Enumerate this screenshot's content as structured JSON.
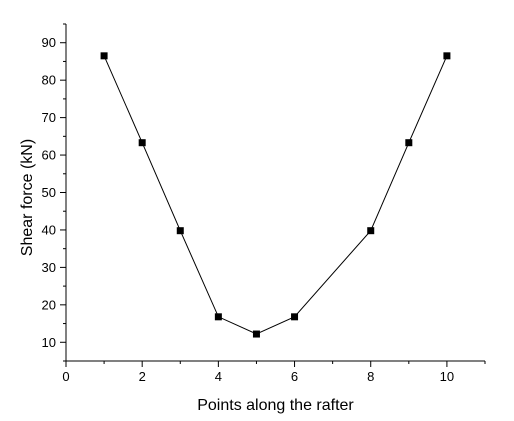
{
  "chart_data": {
    "type": "line",
    "title": "",
    "xlabel": "Points along the rafter",
    "ylabel": "Shear force (kN)",
    "xlim": [
      0,
      11
    ],
    "ylim": [
      5,
      95
    ],
    "xticks": [
      0,
      2,
      4,
      6,
      8,
      10
    ],
    "yticks": [
      10,
      20,
      30,
      40,
      50,
      60,
      70,
      80,
      90
    ],
    "grid": false,
    "marker": "square",
    "series": [
      {
        "x": [
          1,
          2,
          3,
          4,
          5,
          6,
          8,
          9,
          10
        ],
        "y": [
          86.5,
          63.3,
          39.8,
          16.8,
          12.2,
          16.8,
          39.8,
          63.3,
          86.5
        ]
      }
    ]
  }
}
